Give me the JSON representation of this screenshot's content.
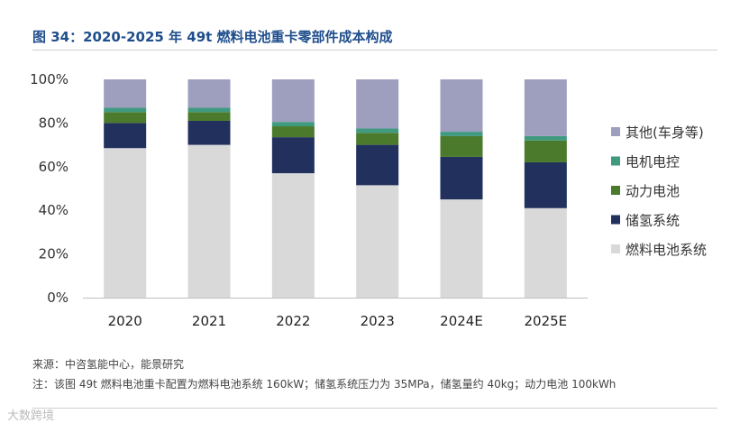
{
  "title": "图 34：2020-2025 年 49t 燃料电池重卡零部件成本构成",
  "footer": {
    "source": "来源：中咨氢能中心，能景研究",
    "note": "注：该图 49t 燃料电池重卡配置为燃料电池系统 160kW；储氢系统压力为 35MPa，储氢量约 40kg；动力电池 100kWh"
  },
  "brand_mark": "大数跨境",
  "colors": {
    "fuel_cell_system": "#d9d9d9",
    "hydrogen_storage": "#22305e",
    "power_battery": "#4b7a2c",
    "motor_control": "#3f9a7f",
    "other": "#9e9fbf"
  },
  "chart_data": {
    "type": "bar",
    "stacked": true,
    "categories": [
      "2020",
      "2021",
      "2022",
      "2023",
      "2024E",
      "2025E"
    ],
    "series": [
      {
        "key": "fuel_cell_system",
        "name": "燃料电池系统",
        "values": [
          68.5,
          70,
          57,
          51.5,
          45,
          41
        ]
      },
      {
        "key": "hydrogen_storage",
        "name": "储氢系统",
        "values": [
          11.5,
          11,
          16.5,
          18.5,
          19.5,
          21
        ]
      },
      {
        "key": "power_battery",
        "name": "动力电池",
        "values": [
          5,
          4,
          5,
          5.5,
          9.5,
          10
        ]
      },
      {
        "key": "motor_control",
        "name": "电机电控",
        "values": [
          2,
          2,
          2,
          2,
          2,
          2
        ]
      },
      {
        "key": "other",
        "name": "其他(车身等)",
        "values": [
          13,
          13,
          19.5,
          22.5,
          24,
          26
        ]
      }
    ],
    "legend_order": [
      "other",
      "motor_control",
      "power_battery",
      "hydrogen_storage",
      "fuel_cell_system"
    ],
    "ylim": [
      0,
      100
    ],
    "yticks": [
      "0%",
      "20%",
      "40%",
      "60%",
      "80%",
      "100%"
    ],
    "ytick_values": [
      0,
      20,
      40,
      60,
      80,
      100
    ],
    "legend_position": "right"
  }
}
